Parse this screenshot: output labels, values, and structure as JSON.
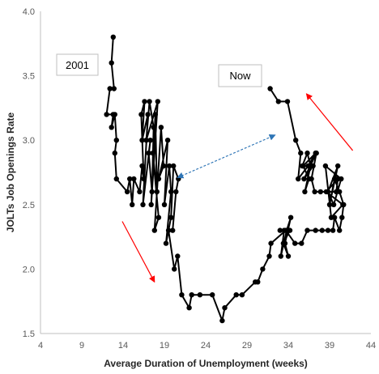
{
  "chart_data": {
    "type": "scatter",
    "title": "",
    "xlabel": "Average Duration of Unemployment (weeks)",
    "ylabel": "JOLTs Job Openings Rate",
    "xlim": [
      4,
      44
    ],
    "ylim": [
      1.5,
      4.0
    ],
    "xticks": [
      4,
      9,
      14,
      19,
      24,
      29,
      34,
      39,
      44
    ],
    "yticks": [
      1.5,
      2.0,
      2.5,
      3.0,
      3.5,
      4.0
    ],
    "ytick_labels": [
      "1.5",
      "2.0",
      "2.5",
      "3.0",
      "3.5",
      "4.0"
    ],
    "grid": false,
    "legend": "none",
    "series": [
      {
        "style": "line-with-markers",
        "color": "#000000",
        "points": [
          [
            12.8,
            3.8
          ],
          [
            12.6,
            3.6
          ],
          [
            12.9,
            3.4
          ],
          [
            12.4,
            3.4
          ],
          [
            12.0,
            3.2
          ],
          [
            12.8,
            3.2
          ],
          [
            12.6,
            3.1
          ],
          [
            13.0,
            3.2
          ],
          [
            13.2,
            3.0
          ],
          [
            13.0,
            2.9
          ],
          [
            13.2,
            2.7
          ],
          [
            14.5,
            2.6
          ],
          [
            14.8,
            2.7
          ],
          [
            15.1,
            2.5
          ],
          [
            15.3,
            2.7
          ],
          [
            16.0,
            2.6
          ],
          [
            16.3,
            2.8
          ],
          [
            16.5,
            2.7
          ],
          [
            16.2,
            3.2
          ],
          [
            16.6,
            3.3
          ],
          [
            16.3,
            3.0
          ],
          [
            17.0,
            3.2
          ],
          [
            16.4,
            2.5
          ],
          [
            17.3,
            3.0
          ],
          [
            17.1,
            2.9
          ],
          [
            17.5,
            2.6
          ],
          [
            17.7,
            3.1
          ],
          [
            17.2,
            3.3
          ],
          [
            16.8,
            3.0
          ],
          [
            18.2,
            3.3
          ],
          [
            17.4,
            2.5
          ],
          [
            17.9,
            3.2
          ],
          [
            18.1,
            2.6
          ],
          [
            17.6,
            2.9
          ],
          [
            18.3,
            2.4
          ],
          [
            17.8,
            2.3
          ],
          [
            18.6,
            3.1
          ],
          [
            18.9,
            2.8
          ],
          [
            18.3,
            2.7
          ],
          [
            19.4,
            3.0
          ],
          [
            19.0,
            2.5
          ],
          [
            19.6,
            2.8
          ],
          [
            19.8,
            2.6
          ],
          [
            19.2,
            2.2
          ],
          [
            19.8,
            2.4
          ],
          [
            20.1,
            2.8
          ],
          [
            20.7,
            2.7
          ],
          [
            20.4,
            2.6
          ],
          [
            20.0,
            2.3
          ],
          [
            19.5,
            2.3
          ],
          [
            20.2,
            2.0
          ],
          [
            20.6,
            2.1
          ],
          [
            21.1,
            1.8
          ],
          [
            22.0,
            1.7
          ],
          [
            22.3,
            1.8
          ],
          [
            23.3,
            1.8
          ],
          [
            24.8,
            1.8
          ],
          [
            26.0,
            1.6
          ],
          [
            26.3,
            1.7
          ],
          [
            27.7,
            1.8
          ],
          [
            28.4,
            1.8
          ],
          [
            30.0,
            1.9
          ],
          [
            30.3,
            1.9
          ],
          [
            30.9,
            2.0
          ],
          [
            31.7,
            2.1
          ],
          [
            31.9,
            2.2
          ],
          [
            33.7,
            2.3
          ],
          [
            34.8,
            2.2
          ],
          [
            35.6,
            2.2
          ],
          [
            36.3,
            2.3
          ],
          [
            37.3,
            2.3
          ],
          [
            38.1,
            2.3
          ],
          [
            38.8,
            2.3
          ],
          [
            39.4,
            2.3
          ],
          [
            39.6,
            2.4
          ],
          [
            40.2,
            2.3
          ],
          [
            40.5,
            2.4
          ],
          [
            40.7,
            2.5
          ],
          [
            40.2,
            2.6
          ],
          [
            39.6,
            2.7
          ],
          [
            39.0,
            2.5
          ],
          [
            40.0,
            2.8
          ],
          [
            38.8,
            2.6
          ],
          [
            39.5,
            2.5
          ],
          [
            40.4,
            2.7
          ],
          [
            38.5,
            2.8
          ],
          [
            39.2,
            2.4
          ],
          [
            40.6,
            2.5
          ],
          [
            38.6,
            2.6
          ],
          [
            40.0,
            2.7
          ],
          [
            39.8,
            2.6
          ],
          [
            37.9,
            2.6
          ],
          [
            37.2,
            2.6
          ],
          [
            36.8,
            2.7
          ],
          [
            37.4,
            2.9
          ],
          [
            35.9,
            2.7
          ],
          [
            37.0,
            2.8
          ],
          [
            35.7,
            2.8
          ],
          [
            36.3,
            2.9
          ],
          [
            36.7,
            2.8
          ],
          [
            36.0,
            2.6
          ],
          [
            36.5,
            2.7
          ],
          [
            35.8,
            2.8
          ],
          [
            37.3,
            2.9
          ],
          [
            36.4,
            2.8
          ],
          [
            35.2,
            2.7
          ],
          [
            35.5,
            2.9
          ],
          [
            34.9,
            3.0
          ],
          [
            33.9,
            3.3
          ],
          [
            32.8,
            3.3
          ],
          [
            31.8,
            3.4
          ]
        ]
      },
      {
        "style": "line-with-markers",
        "color": "#000000",
        "points": [
          [
            34.2,
            2.3
          ],
          [
            33.4,
            2.2
          ],
          [
            34.0,
            2.1
          ],
          [
            33.6,
            2.2
          ],
          [
            34.3,
            2.4
          ],
          [
            33.8,
            2.3
          ],
          [
            33.1,
            2.1
          ],
          [
            33.5,
            2.3
          ],
          [
            33.0,
            2.3
          ]
        ]
      }
    ],
    "annotations": [
      {
        "text": "2001",
        "x": 9.1,
        "y": 3.58
      },
      {
        "text": "Now",
        "x": 26.9,
        "y": 3.5
      }
    ],
    "arrows": [
      {
        "style": "solid",
        "color": "#ff0000",
        "from": [
          13.9,
          2.37
        ],
        "to": [
          17.8,
          1.9
        ]
      },
      {
        "style": "solid",
        "color": "#ff0000",
        "from": [
          41.8,
          2.92
        ],
        "to": [
          36.2,
          3.36
        ]
      },
      {
        "style": "dashed-double",
        "color": "#2e75b6",
        "from": [
          20.6,
          2.71
        ],
        "to": [
          32.4,
          3.04
        ]
      }
    ]
  }
}
